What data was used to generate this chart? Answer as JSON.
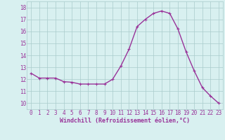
{
  "x": [
    0,
    1,
    2,
    3,
    4,
    5,
    6,
    7,
    8,
    9,
    10,
    11,
    12,
    13,
    14,
    15,
    16,
    17,
    18,
    19,
    20,
    21,
    22,
    23
  ],
  "y": [
    12.5,
    12.1,
    12.1,
    12.1,
    11.8,
    11.75,
    11.6,
    11.6,
    11.6,
    11.6,
    12.0,
    13.1,
    14.5,
    16.4,
    17.0,
    17.5,
    17.7,
    17.5,
    16.2,
    14.3,
    12.7,
    11.3,
    10.6,
    10.0
  ],
  "line_color": "#993399",
  "marker": "+",
  "marker_size": 3,
  "line_width": 1.0,
  "bg_color": "#d8f0f0",
  "grid_color": "#aacccc",
  "xlabel": "Windchill (Refroidissement éolien,°C)",
  "xlabel_color": "#993399",
  "xlabel_fontsize": 6.0,
  "tick_color": "#993399",
  "tick_fontsize": 5.5,
  "ytick_labels": [
    10,
    11,
    12,
    13,
    14,
    15,
    16,
    17,
    18
  ],
  "xtick_labels": [
    0,
    1,
    2,
    3,
    4,
    5,
    6,
    7,
    8,
    9,
    10,
    11,
    12,
    13,
    14,
    15,
    16,
    17,
    18,
    19,
    20,
    21,
    22,
    23
  ],
  "ylim": [
    9.5,
    18.5
  ],
  "xlim": [
    -0.5,
    23.5
  ]
}
